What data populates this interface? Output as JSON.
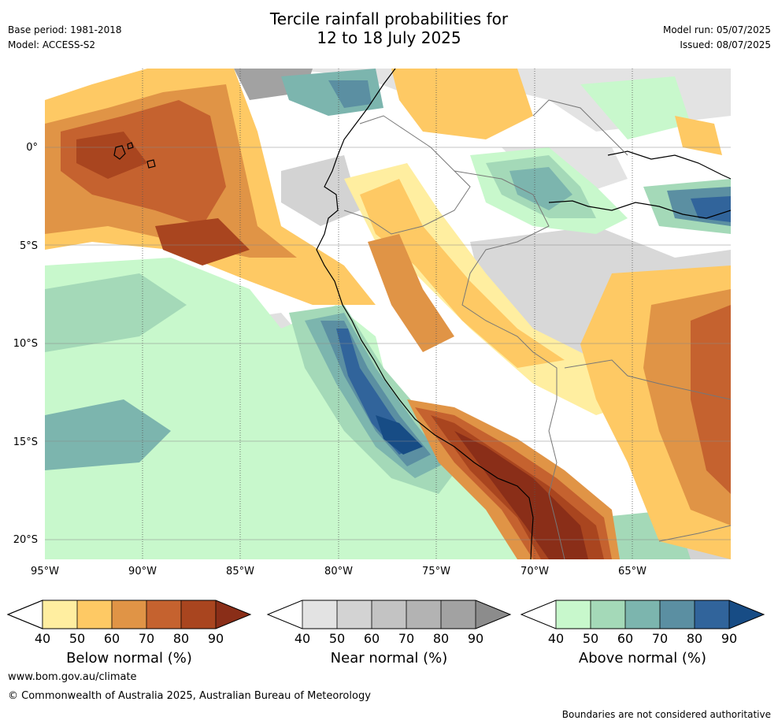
{
  "title": {
    "line1": "Tercile rainfall probabilities for",
    "line2": "12 to 18 July 2025"
  },
  "meta": {
    "base_period": "Base period: 1981-2018",
    "model": "Model: ACCESS-S2",
    "model_run": "Model run: 05/07/2025",
    "issued": "Issued: 08/07/2025"
  },
  "map": {
    "lat_labels": [
      "0°",
      "5°S",
      "10°S",
      "15°S",
      "20°S"
    ],
    "lon_labels": [
      "95°W",
      "90°W",
      "85°W",
      "80°W",
      "75°W",
      "70°W",
      "65°W"
    ]
  },
  "colorbars": {
    "ticks": [
      "40",
      "50",
      "60",
      "70",
      "80",
      "90"
    ],
    "below": {
      "title": "Below normal (%)",
      "colors": [
        "#ffeea0",
        "#fec964",
        "#e09446",
        "#c5622f",
        "#a9451f",
        "#8a2e18"
      ]
    },
    "near": {
      "title": "Near normal (%)",
      "colors": [
        "#e3e3e3",
        "#d3d3d3",
        "#c3c3c3",
        "#b3b3b3",
        "#a2a2a2",
        "#8c8c8c"
      ]
    },
    "above": {
      "title": "Above normal (%)",
      "colors": [
        "#c8f8cc",
        "#a4d9b8",
        "#7cb5ae",
        "#5b8fa2",
        "#31649b",
        "#174c85"
      ]
    }
  },
  "footer": {
    "url": "www.bom.gov.au/climate",
    "copyright": "© Commonwealth of Australia 2025, Australian Bureau of Meteorology",
    "note": "Boundaries are not considered authoritative"
  }
}
